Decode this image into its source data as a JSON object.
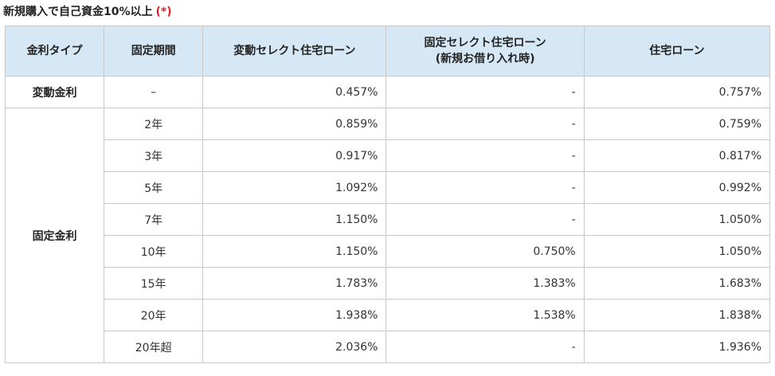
{
  "caption": {
    "text": "新規購入で自己資金10%以上",
    "note_mark": "(*)"
  },
  "table": {
    "headers": {
      "rate_type": "金利タイプ",
      "fixed_period": "固定期間",
      "variable_select": "変動セレクト住宅ローン",
      "fixed_select": "固定セレクト住宅ローン",
      "fixed_select_note": "(新規お借り入れ時)",
      "home_loan": "住宅ローン"
    },
    "variable_group": {
      "type": "変動金利",
      "rows": [
        {
          "period": "–",
          "variable_select": "0.457%",
          "fixed_select": "-",
          "home_loan": "0.757%"
        }
      ]
    },
    "fixed_group": {
      "type": "固定金利",
      "rows": [
        {
          "period": "2年",
          "variable_select": "0.859%",
          "fixed_select": "-",
          "home_loan": "0.759%"
        },
        {
          "period": "3年",
          "variable_select": "0.917%",
          "fixed_select": "-",
          "home_loan": "0.817%"
        },
        {
          "period": "5年",
          "variable_select": "1.092%",
          "fixed_select": "-",
          "home_loan": "0.992%"
        },
        {
          "period": "7年",
          "variable_select": "1.150%",
          "fixed_select": "-",
          "home_loan": "1.050%"
        },
        {
          "period": "10年",
          "variable_select": "1.150%",
          "fixed_select": "0.750%",
          "home_loan": "1.050%"
        },
        {
          "period": "15年",
          "variable_select": "1.783%",
          "fixed_select": "1.383%",
          "home_loan": "1.683%"
        },
        {
          "period": "20年",
          "variable_select": "1.938%",
          "fixed_select": "1.538%",
          "home_loan": "1.838%"
        },
        {
          "period": "20年超",
          "variable_select": "2.036%",
          "fixed_select": "-",
          "home_loan": "1.936%"
        }
      ]
    }
  },
  "colors": {
    "header_background": "#d6e8f5",
    "border": "#c8c8c8",
    "note_mark": "#d9262a"
  }
}
